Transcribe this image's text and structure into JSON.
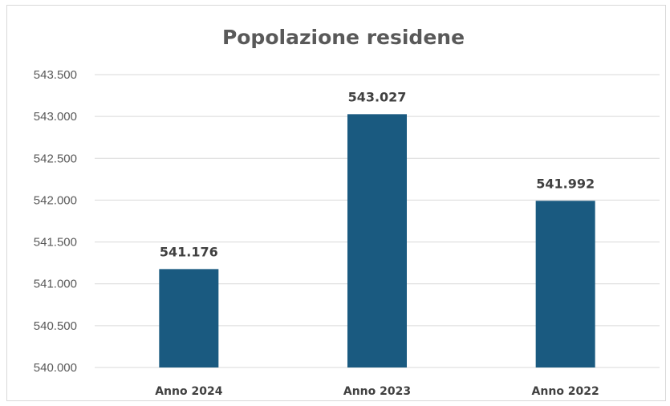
{
  "chart_data": {
    "type": "bar",
    "title": "Popolazione residene",
    "xlabel": "",
    "ylabel": "",
    "categories": [
      "Anno 2024",
      "Anno 2023",
      "Anno 2022"
    ],
    "values": [
      541176,
      543027,
      541992
    ],
    "data_labels": [
      "541.176",
      "543.027",
      "541.992"
    ],
    "ylim": [
      540000,
      543500
    ],
    "yticks": [
      540000,
      540500,
      541000,
      541500,
      542000,
      542500,
      543000,
      543500
    ],
    "ytick_labels": [
      "540.000",
      "540.500",
      "541.000",
      "541.500",
      "542.000",
      "542.500",
      "543.000",
      "543.500"
    ],
    "grid": true,
    "legend": "none",
    "bar_color": "#1a5a80"
  }
}
